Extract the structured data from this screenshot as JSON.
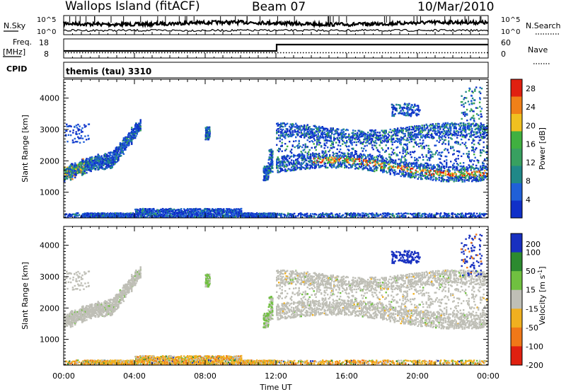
{
  "header": {
    "station": "Wallops Island (fitACF)",
    "beam": "Beam 07",
    "date": "10/Mar/2010"
  },
  "noise_panel": {
    "left_label": "N.Sky",
    "left_ticks": [
      "10^5",
      "10^0"
    ],
    "right_label": "N.Search",
    "right_ticks": [
      "10^5",
      "10^0"
    ]
  },
  "freq_panel": {
    "left_label_1": "Freq.",
    "left_label_2": "[MHz]",
    "left_ticks": [
      "18",
      "8"
    ],
    "right_label": "Nave",
    "right_ticks": [
      "60",
      "0"
    ]
  },
  "cpid_panel": {
    "label": "CPID",
    "value": "themis (tau) 3310"
  },
  "colors": {
    "power_scale": [
      "#1030c8",
      "#2060d8",
      "#208888",
      "#38a060",
      "#40b040",
      "#f0c020",
      "#f08018",
      "#e02010"
    ],
    "velocity_scale": [
      "#1830c0",
      "#2c8a30",
      "#70c040",
      "#bfbfb6",
      "#f0b020",
      "#f07818",
      "#e02010"
    ]
  },
  "chart_data": [
    {
      "type": "heatmap",
      "title": "",
      "parameter": "Power",
      "ylabel": "Slant Range [km]",
      "xlabel": "Time UT",
      "x_ticks": [
        "00:00",
        "04:00",
        "08:00",
        "12:00",
        "16:00",
        "20:00",
        "00:00"
      ],
      "y_ticks": [
        "1000",
        "2000",
        "3000",
        "4000"
      ],
      "xlim_hours": [
        0,
        24
      ],
      "ylim_km": [
        180,
        4600
      ],
      "colorbar_label": "Power [dB]",
      "colorbar_ticks": [
        "4",
        "8",
        "12",
        "16",
        "20",
        "24",
        "28"
      ],
      "colorbar_range": [
        0,
        30
      ]
    },
    {
      "type": "heatmap",
      "title": "",
      "parameter": "Velocity",
      "ylabel": "Slant Range [km]",
      "xlabel": "Time UT",
      "x_ticks": [
        "00:00",
        "04:00",
        "08:00",
        "12:00",
        "16:00",
        "20:00",
        "00:00"
      ],
      "y_ticks": [
        "1000",
        "2000",
        "3000",
        "4000"
      ],
      "xlim_hours": [
        0,
        24
      ],
      "ylim_km": [
        180,
        4600
      ],
      "colorbar_label": "Velocity [m s-1]",
      "colorbar_label_main": "Velocity [m s",
      "colorbar_label_sup": "-1",
      "colorbar_label_end": "]",
      "colorbar_ticks": [
        "200",
        "100",
        "50",
        "15",
        "-15",
        "-50",
        "-100",
        "-200"
      ]
    }
  ],
  "x_axis": {
    "title": "Time UT",
    "ticks": [
      "00:00",
      "04:00",
      "08:00",
      "12:00",
      "16:00",
      "20:00",
      "00:00"
    ]
  }
}
